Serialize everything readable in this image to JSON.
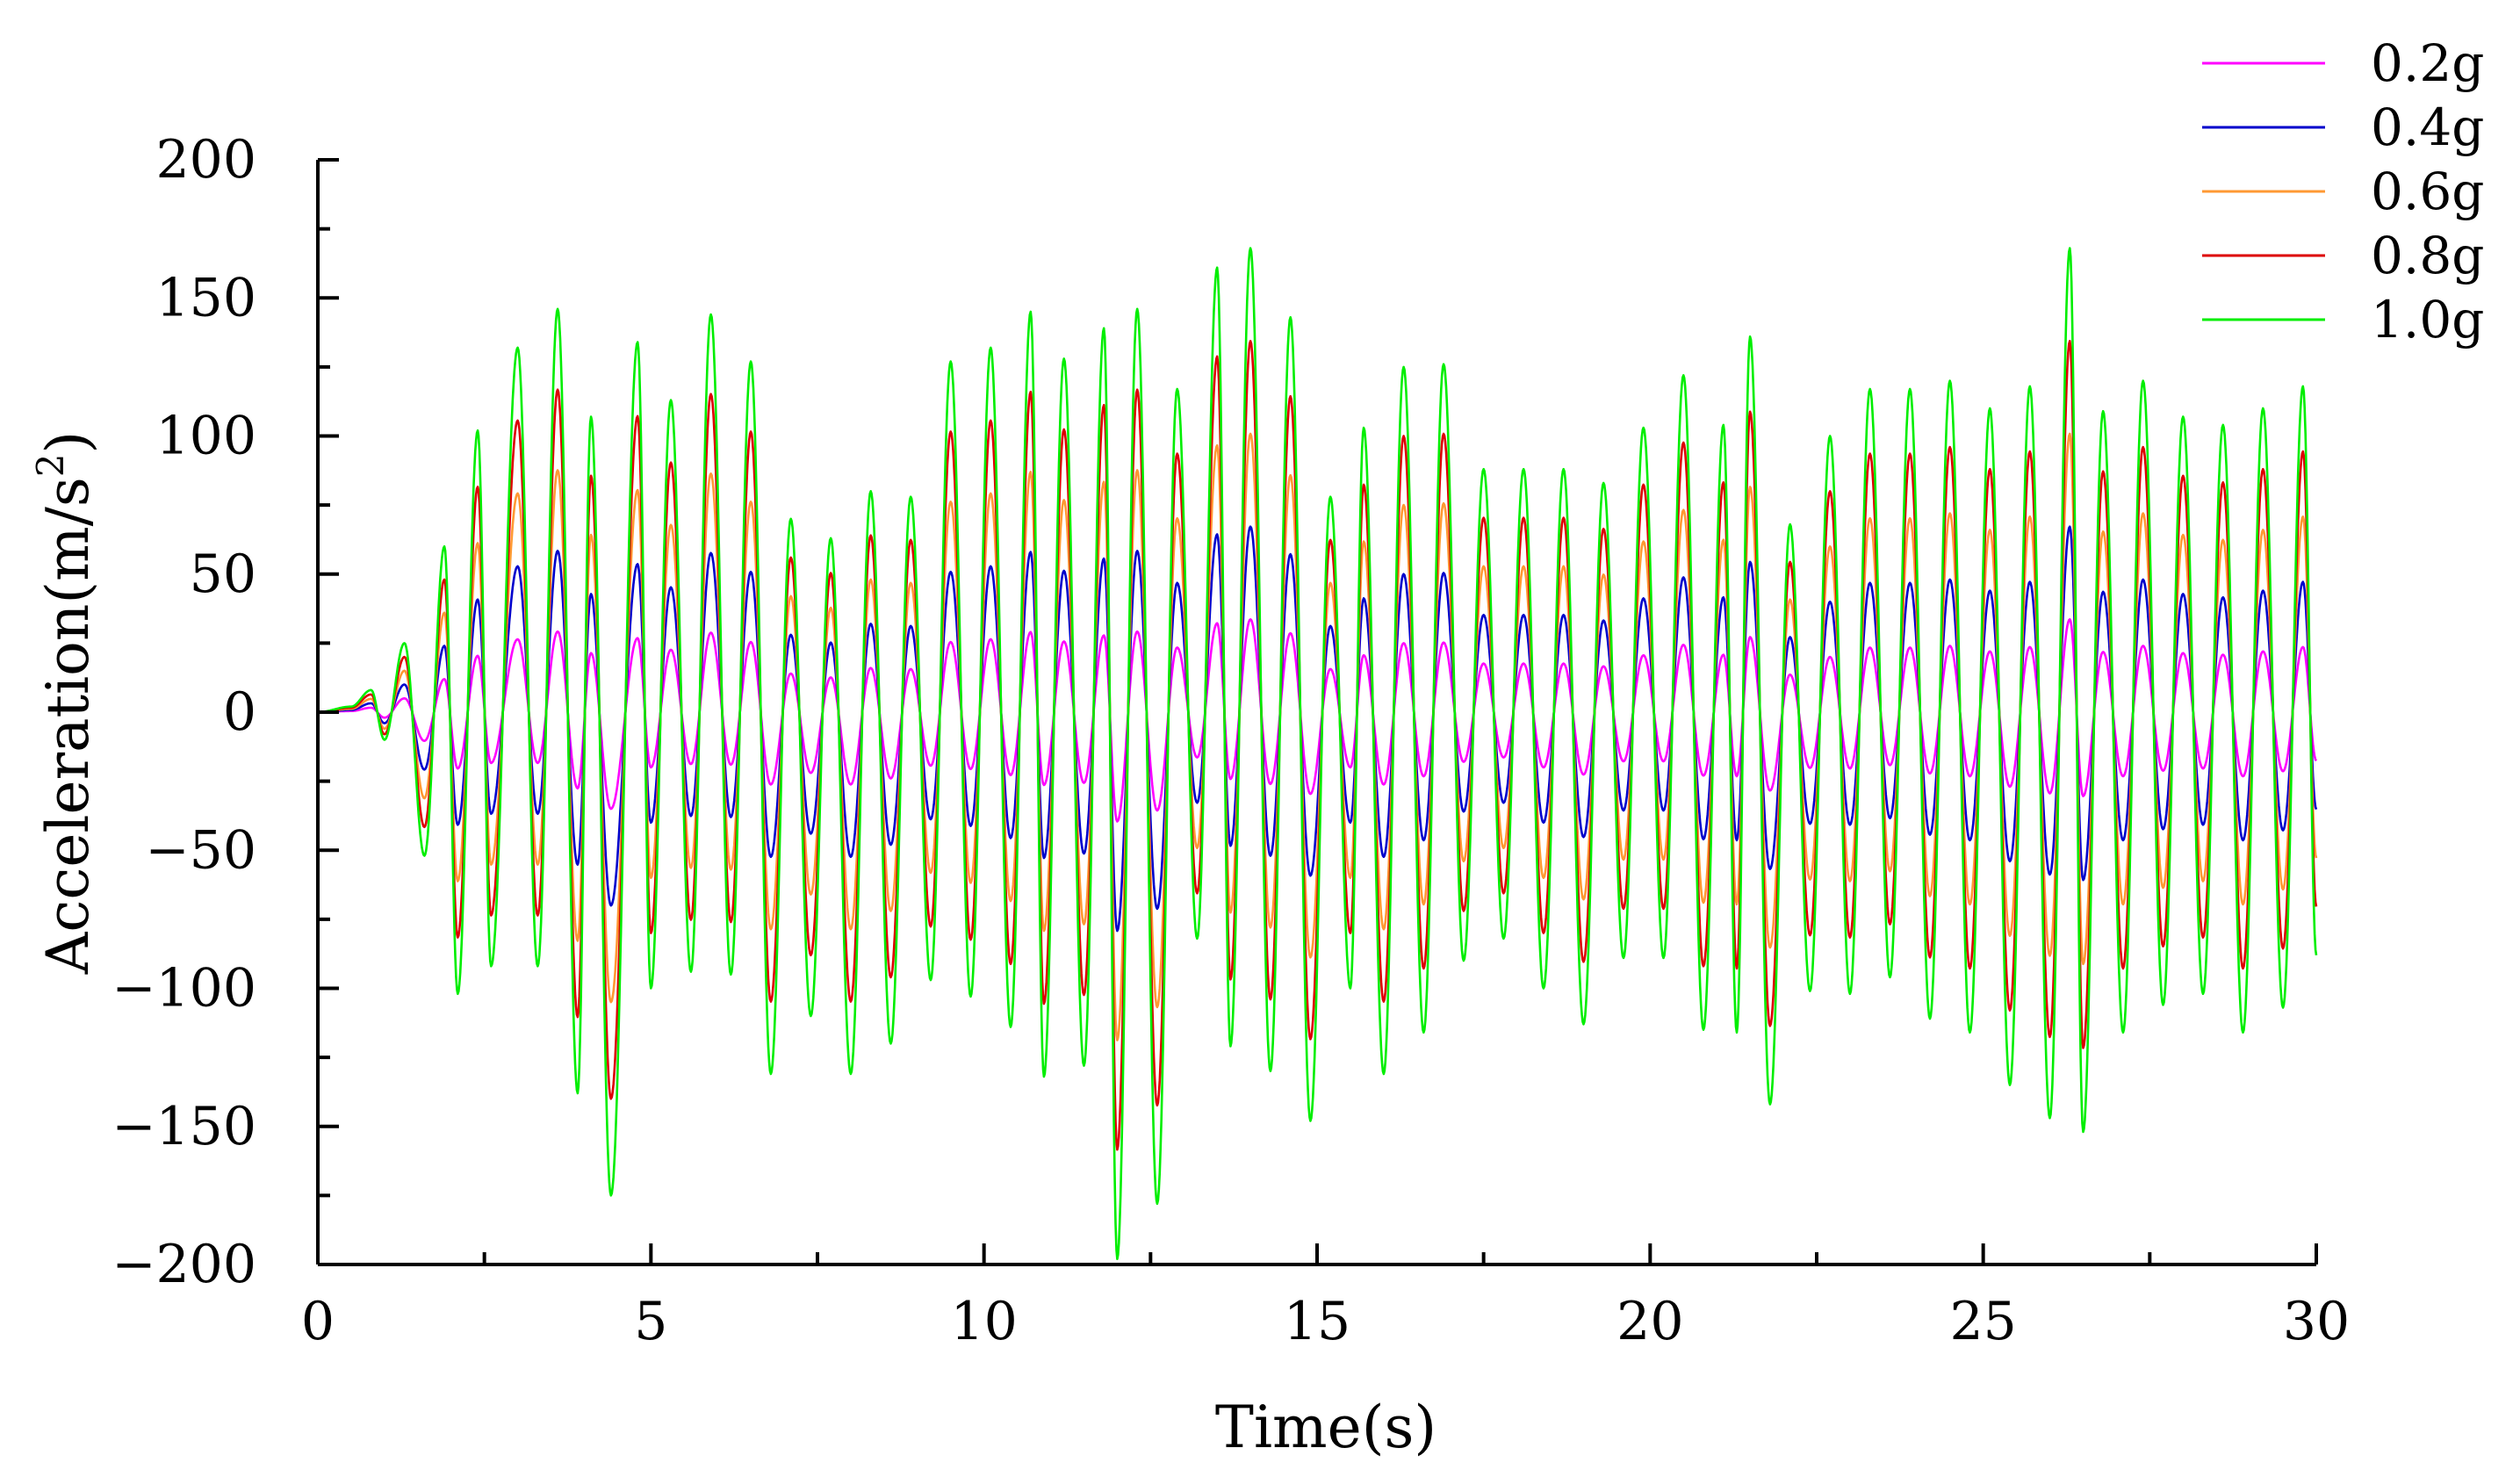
{
  "chart_data": {
    "type": "line",
    "title": "",
    "xlabel": "Time(s)",
    "ylabel_base": "Acceleration(m/s",
    "ylabel_sup": "2",
    "ylabel_end": ")",
    "xlim": [
      0,
      30
    ],
    "ylim": [
      -200,
      200
    ],
    "x_ticks": [
      0,
      5,
      10,
      15,
      20,
      25,
      30
    ],
    "x_tick_labels": [
      "0",
      "5",
      "10",
      "15",
      "20",
      "25",
      "30"
    ],
    "y_ticks": [
      200,
      150,
      100,
      50,
      0,
      -50,
      -100,
      -150,
      -200
    ],
    "y_tick_labels": [
      "200",
      "150",
      "100",
      "50",
      "0",
      "−50",
      "−100",
      "−150",
      "−200"
    ],
    "grid": false,
    "legend_position": "top-right",
    "sample_interval_s": 0.1,
    "base_peaks_1g": [
      [
        0.0,
        0
      ],
      [
        0.5,
        2
      ],
      [
        0.8,
        8
      ],
      [
        1.0,
        -10
      ],
      [
        1.3,
        25
      ],
      [
        1.6,
        -52
      ],
      [
        1.9,
        60
      ],
      [
        2.1,
        -102
      ],
      [
        2.4,
        102
      ],
      [
        2.6,
        -92
      ],
      [
        3.0,
        132
      ],
      [
        3.3,
        -92
      ],
      [
        3.6,
        146
      ],
      [
        3.9,
        -138
      ],
      [
        4.1,
        107
      ],
      [
        4.4,
        -175
      ],
      [
        4.8,
        134
      ],
      [
        5.0,
        -100
      ],
      [
        5.3,
        113
      ],
      [
        5.6,
        -94
      ],
      [
        5.9,
        144
      ],
      [
        6.2,
        -95
      ],
      [
        6.5,
        127
      ],
      [
        6.8,
        -131
      ],
      [
        7.1,
        70
      ],
      [
        7.4,
        -110
      ],
      [
        7.7,
        63
      ],
      [
        8.0,
        -131
      ],
      [
        8.3,
        80
      ],
      [
        8.6,
        -120
      ],
      [
        8.9,
        78
      ],
      [
        9.2,
        -97
      ],
      [
        9.5,
        127
      ],
      [
        9.8,
        -103
      ],
      [
        10.1,
        132
      ],
      [
        10.4,
        -114
      ],
      [
        10.7,
        145
      ],
      [
        10.9,
        -132
      ],
      [
        11.2,
        128
      ],
      [
        11.5,
        -128
      ],
      [
        11.8,
        139
      ],
      [
        12.0,
        -198
      ],
      [
        12.3,
        146
      ],
      [
        12.6,
        -178
      ],
      [
        12.9,
        117
      ],
      [
        13.2,
        -82
      ],
      [
        13.5,
        161
      ],
      [
        13.7,
        -121
      ],
      [
        14.0,
        168
      ],
      [
        14.3,
        -130
      ],
      [
        14.6,
        143
      ],
      [
        14.9,
        -148
      ],
      [
        15.2,
        78
      ],
      [
        15.5,
        -100
      ],
      [
        15.7,
        103
      ],
      [
        16.0,
        -131
      ],
      [
        16.3,
        125
      ],
      [
        16.6,
        -116
      ],
      [
        16.9,
        126
      ],
      [
        17.2,
        -90
      ],
      [
        17.5,
        88
      ],
      [
        17.8,
        -82
      ],
      [
        18.1,
        88
      ],
      [
        18.4,
        -100
      ],
      [
        18.7,
        88
      ],
      [
        19.0,
        -113
      ],
      [
        19.3,
        83
      ],
      [
        19.6,
        -89
      ],
      [
        19.9,
        103
      ],
      [
        20.2,
        -89
      ],
      [
        20.5,
        122
      ],
      [
        20.8,
        -115
      ],
      [
        21.1,
        104
      ],
      [
        21.3,
        -116
      ],
      [
        21.5,
        136
      ],
      [
        21.8,
        -142
      ],
      [
        22.1,
        68
      ],
      [
        22.4,
        -101
      ],
      [
        22.7,
        100
      ],
      [
        23.0,
        -102
      ],
      [
        23.3,
        117
      ],
      [
        23.6,
        -96
      ],
      [
        23.9,
        117
      ],
      [
        24.2,
        -111
      ],
      [
        24.5,
        120
      ],
      [
        24.8,
        -116
      ],
      [
        25.1,
        110
      ],
      [
        25.4,
        -135
      ],
      [
        25.7,
        118
      ],
      [
        26.0,
        -147
      ],
      [
        26.3,
        168
      ],
      [
        26.5,
        -152
      ],
      [
        26.8,
        109
      ],
      [
        27.1,
        -116
      ],
      [
        27.4,
        120
      ],
      [
        27.7,
        -106
      ],
      [
        28.0,
        107
      ],
      [
        28.3,
        -102
      ],
      [
        28.6,
        104
      ],
      [
        28.9,
        -116
      ],
      [
        29.2,
        110
      ],
      [
        29.5,
        -107
      ],
      [
        29.8,
        118
      ],
      [
        30.0,
        -88
      ]
    ],
    "series": [
      {
        "name": "0.2g",
        "color": "#ff00ff",
        "scale": 0.2
      },
      {
        "name": "0.4g",
        "color": "#0000cc",
        "scale": 0.4
      },
      {
        "name": "0.6g",
        "color": "#ff9933",
        "scale": 0.6
      },
      {
        "name": "0.8g",
        "color": "#dd0000",
        "scale": 0.8
      },
      {
        "name": "1.0g",
        "color": "#00ee00",
        "scale": 1.0
      }
    ]
  }
}
